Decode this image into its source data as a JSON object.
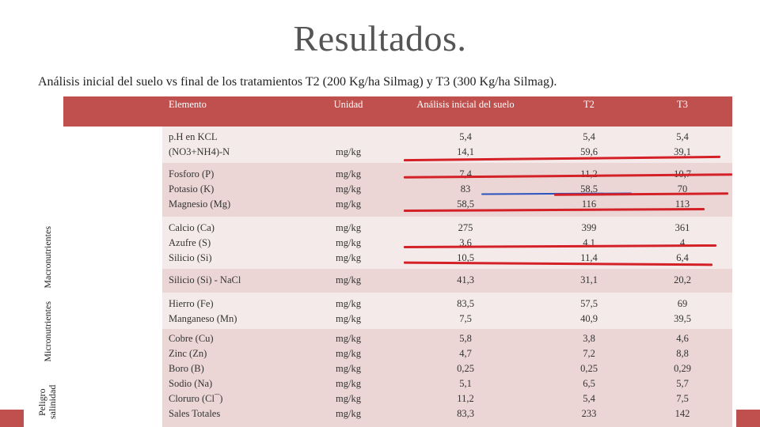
{
  "title": "Resultados.",
  "subtitle": "Análisis inicial del suelo vs final de los tratamientos T2 (200 Kg/ha Silmag) y T3 (300 Kg/ha Silmag).",
  "headers": {
    "element": "Elemento",
    "unit": "Unidad",
    "initial": "Análisis inicial del suelo",
    "t2": "T2",
    "t3": "T3"
  },
  "groups": {
    "macro": "Macronutrientes",
    "micro": "Micronutrientes",
    "salinity": "Peligro salinidad"
  },
  "rows": [
    {
      "element": "p.H en KCL\n(NO3+NH4)-N",
      "unit": "\nmg/kg",
      "initial": "5,4\n14,1",
      "t2": "5,4\n59,6",
      "t3": "5,4\n39,1"
    },
    {
      "element": "Fosforo (P)\nPotasio (K)\nMagnesio (Mg)",
      "unit": "mg/kg\nmg/kg\nmg/kg",
      "initial": "7,4\n83\n58,5",
      "t2": "11,2\n58,5\n116",
      "t3": "10,7\n70\n113"
    },
    {
      "element": "Calcio (Ca)\nAzufre (S)\nSilicio (Si)",
      "unit": "mg/kg\nmg/kg\nmg/kg",
      "initial": "275\n3,6\n10,5",
      "t2": "399\n4,1\n11,4",
      "t3": "361\n4\n6,4"
    },
    {
      "element": "Silicio (Si) - NaCl",
      "unit": "mg/kg",
      "initial": "41,3",
      "t2": "31,1",
      "t3": "20,2"
    },
    {
      "element": "Hierro (Fe)\nManganeso (Mn)",
      "unit": "mg/kg\nmg/kg",
      "initial": "83,5\n7,5",
      "t2": "57,5\n40,9",
      "t3": "69\n39,5"
    },
    {
      "element": "Cobre (Cu)\nZinc (Zn)\nBoro (B)\nSodio (Na)\nCloruro (Cl¯)\nSales Totales",
      "unit": "mg/kg\nmg/kg\nmg/kg\nmg/kg\nmg/kg\nmg/kg",
      "initial": "5,8\n4,7\n0,25\n5,1\n11,2\n83,3",
      "t2": "3,8\n7,2\n0,25\n6,5\n5,4\n233",
      "t3": "4,6\n8,8\n0,29\n5,7\n7,5\n142"
    }
  ],
  "colors": {
    "accent": "#c0504d",
    "row_odd": "#ebd6d5",
    "row_even": "#f5eaea",
    "highlight_red": "#d42027",
    "highlight_blue": "#2a52be"
  }
}
